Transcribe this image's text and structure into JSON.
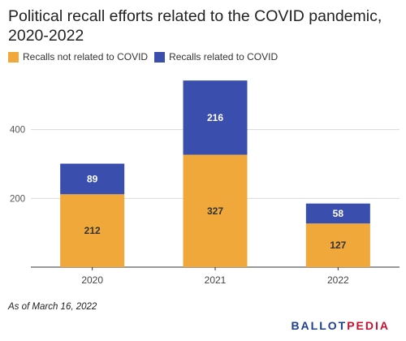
{
  "chart_data": {
    "type": "bar",
    "stacked": true,
    "title": "Political recall efforts related to the COVID pandemic, 2020-2022",
    "categories": [
      "2020",
      "2021",
      "2022"
    ],
    "series": [
      {
        "name": "Recalls not related to COVID",
        "color": "#f0a83a",
        "values": [
          212,
          327,
          127
        ]
      },
      {
        "name": "Recalls related to COVID",
        "color": "#3a4fad",
        "values": [
          89,
          216,
          58
        ]
      }
    ],
    "ylim": [
      0,
      600
    ],
    "yticks": [
      200,
      400
    ],
    "legend_position": "top-left",
    "grid": true
  },
  "footnote": "As of March 16, 2022",
  "brand": {
    "part1": "BALLOT",
    "part2": "PEDIA"
  }
}
